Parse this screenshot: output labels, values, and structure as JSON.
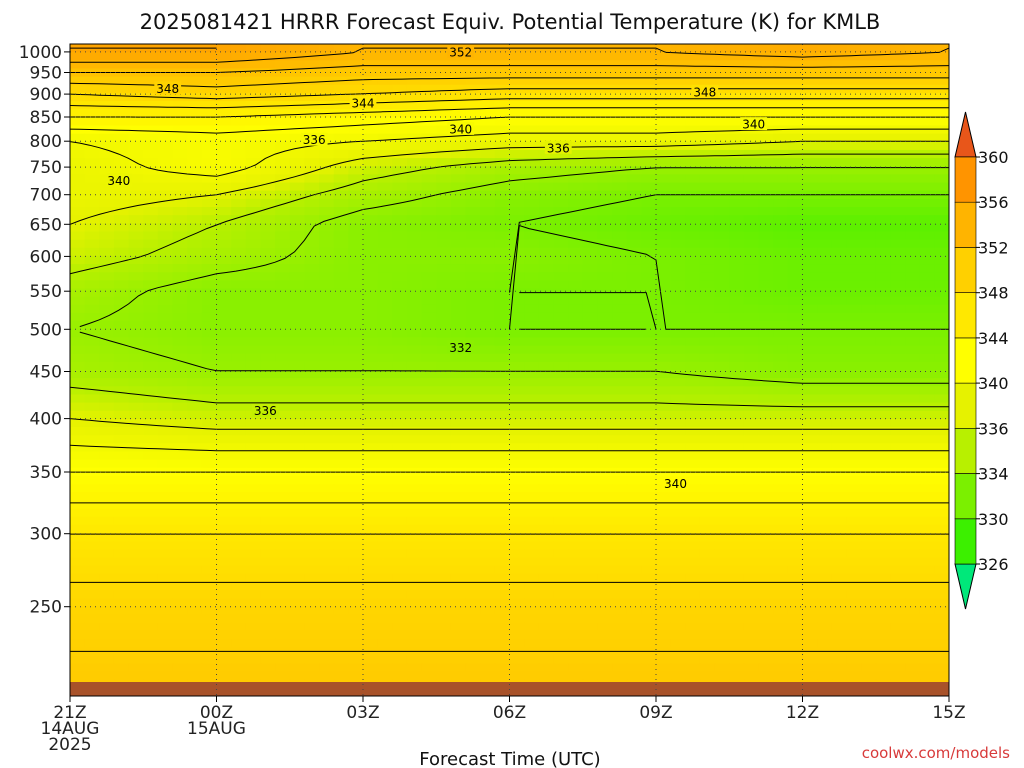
{
  "chart_data": {
    "type": "heatmap",
    "title": "2025081421 HRRR Forecast Equiv. Potential Temperature (K) for KMLB",
    "xlabel": "Forecast Time (UTC)",
    "ylabel": "",
    "x_hours": [
      0,
      3,
      6,
      9,
      12,
      15,
      18
    ],
    "x_ticks": [
      {
        "h": 0,
        "lines": [
          "21Z",
          "14AUG",
          "2025"
        ]
      },
      {
        "h": 3,
        "lines": [
          "00Z",
          "15AUG"
        ]
      },
      {
        "h": 6,
        "lines": [
          "03Z"
        ]
      },
      {
        "h": 9,
        "lines": [
          "06Z"
        ]
      },
      {
        "h": 12,
        "lines": [
          "09Z"
        ]
      },
      {
        "h": 15,
        "lines": [
          "12Z"
        ]
      },
      {
        "h": 18,
        "lines": [
          "15Z"
        ]
      }
    ],
    "y_ticks": [
      250,
      300,
      350,
      400,
      450,
      500,
      550,
      600,
      650,
      700,
      750,
      800,
      850,
      900,
      950,
      1000
    ],
    "ylim": [
      1020,
      200
    ],
    "y_scale": "log-pressure",
    "colorbar": {
      "labels": [
        326,
        330,
        334,
        336,
        340,
        344,
        348,
        352,
        356,
        360
      ],
      "colors": [
        "#3cf000",
        "#7bf000",
        "#b8f000",
        "#e6f200",
        "#ffff00",
        "#ffe800",
        "#ffd000",
        "#ffb400",
        "#ff9400",
        "#f07000"
      ],
      "low_arrow_color": "#00e87a",
      "high_arrow_color": "#e8561a"
    },
    "profile_levels": [
      1000,
      950,
      900,
      850,
      800,
      750,
      700,
      650,
      600,
      550,
      500,
      450,
      400,
      350,
      300,
      250,
      200
    ],
    "profiles": [
      {
        "h": 0,
        "values": [
          354,
          350,
          346,
          342,
          338,
          337,
          337,
          336,
          335,
          333,
          332,
          333,
          336,
          340,
          344,
          347,
          349
        ]
      },
      {
        "h": 3,
        "values": [
          354,
          350,
          347,
          342,
          339,
          339,
          336,
          334,
          333,
          331,
          331,
          332,
          335,
          340,
          344,
          347,
          349
        ]
      },
      {
        "h": 6,
        "values": [
          352,
          349,
          346,
          341,
          338,
          335,
          333,
          331,
          331,
          331,
          331,
          332,
          335,
          340,
          344,
          347,
          349
        ]
      },
      {
        "h": 9,
        "values": [
          352,
          349,
          345,
          340,
          337,
          333,
          331,
          330,
          331,
          330,
          330,
          332,
          335,
          340,
          344,
          347,
          349
        ]
      },
      {
        "h": 12,
        "values": [
          352,
          349,
          345,
          340,
          337,
          332,
          330,
          329,
          330,
          330,
          330,
          332,
          335,
          340,
          344,
          347,
          349
        ]
      },
      {
        "h": 15,
        "values": [
          353,
          349,
          345,
          340,
          336,
          332,
          330,
          328,
          329,
          329,
          330,
          331,
          335,
          340,
          344,
          347,
          349
        ]
      },
      {
        "h": 18,
        "values": [
          352,
          349,
          345,
          340,
          336,
          332,
          330,
          328,
          329,
          329,
          330,
          331,
          335,
          340,
          344,
          347,
          349
        ]
      }
    ],
    "contour_labels": [
      {
        "value": "340",
        "h": 12.4,
        "p": 340
      },
      {
        "value": "336",
        "h": 4,
        "p": 408
      },
      {
        "value": "332",
        "h": 8,
        "p": 478
      },
      {
        "value": "340",
        "h": 1,
        "p": 725
      },
      {
        "value": "336",
        "h": 5,
        "p": 803
      },
      {
        "value": "336",
        "h": 10,
        "p": 787
      },
      {
        "value": "340",
        "h": 8,
        "p": 825
      },
      {
        "value": "340",
        "h": 14,
        "p": 835
      },
      {
        "value": "344",
        "h": 6,
        "p": 880
      },
      {
        "value": "348",
        "h": 2,
        "p": 913
      },
      {
        "value": "348",
        "h": 13,
        "p": 905
      },
      {
        "value": "352",
        "h": 8,
        "p": 1000
      }
    ],
    "grid": true,
    "legend": "right colorbar"
  },
  "credit": "coolwx.com/models"
}
